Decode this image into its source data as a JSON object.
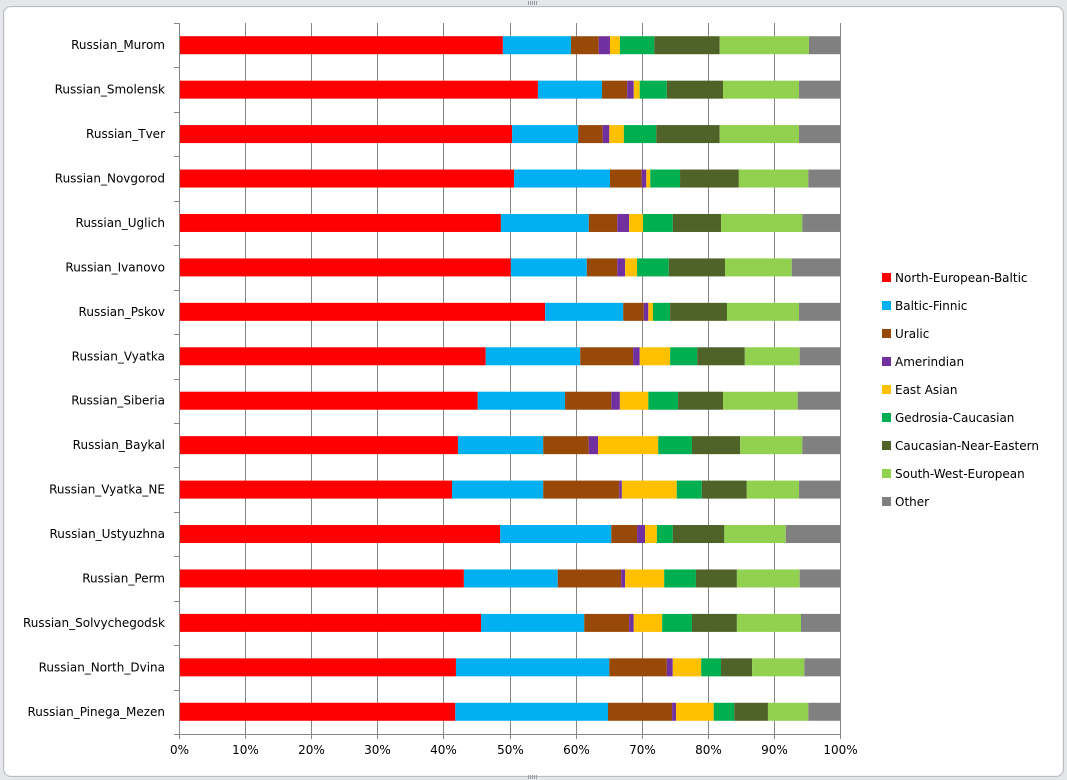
{
  "chart_data": {
    "type": "bar",
    "orientation": "horizontal",
    "stacked": "percent",
    "title": "",
    "xlabel": "",
    "ylabel": "",
    "xlim": [
      0,
      100
    ],
    "x_ticks": [
      "0%",
      "10%",
      "20%",
      "30%",
      "40%",
      "50%",
      "60%",
      "70%",
      "80%",
      "90%",
      "100%"
    ],
    "grid": "vertical",
    "legend_position": "right",
    "categories": [
      "Russian_Murom",
      "Russian_Smolensk",
      "Russian_Tver",
      "Russian_Novgorod",
      "Russian_Uglich",
      "Russian_Ivanovo",
      "Russian_Pskov",
      "Russian_Vyatka",
      "Russian_Siberia",
      "Russian_Baykal",
      "Russian_Vyatka_NE",
      "Russian_Ustyuzhna",
      "Russian_Perm",
      "Russian_Solvychegodsk",
      "Russian_North_Dvina",
      "Russian_Pinega_Mezen"
    ],
    "series": [
      {
        "name": "North-European-Baltic",
        "color": "#ff0000",
        "values": [
          49.0,
          54.3,
          50.4,
          50.7,
          48.7,
          50.2,
          55.4,
          46.4,
          45.2,
          42.2,
          41.3,
          48.6,
          43.1,
          45.7,
          41.9,
          41.8
        ]
      },
      {
        "name": "Baltic-Finnic",
        "color": "#00b0f0",
        "values": [
          10.3,
          9.7,
          10.0,
          14.5,
          13.3,
          11.5,
          11.8,
          14.3,
          13.2,
          12.9,
          13.8,
          16.8,
          14.2,
          15.6,
          23.2,
          23.1
        ]
      },
      {
        "name": "Uralic",
        "color": "#984807",
        "values": [
          4.2,
          3.8,
          3.7,
          4.8,
          4.3,
          4.6,
          3.1,
          8.0,
          7.0,
          6.9,
          11.5,
          3.9,
          9.6,
          6.8,
          8.7,
          9.7
        ]
      },
      {
        "name": "Amerindian",
        "color": "#7030a0",
        "values": [
          1.7,
          1.0,
          1.0,
          0.7,
          1.8,
          1.2,
          0.7,
          1.0,
          1.3,
          1.4,
          0.4,
          1.2,
          0.6,
          0.7,
          0.9,
          0.6
        ]
      },
      {
        "name": "East Asian",
        "color": "#ffc000",
        "values": [
          1.5,
          0.9,
          2.2,
          0.6,
          2.1,
          1.8,
          0.7,
          4.6,
          4.3,
          9.1,
          8.3,
          1.8,
          5.9,
          4.3,
          4.3,
          5.7
        ]
      },
      {
        "name": "Gedrosia-Caucasian",
        "color": "#00b050",
        "values": [
          5.2,
          4.1,
          4.9,
          4.5,
          4.5,
          4.8,
          2.6,
          4.1,
          4.5,
          5.1,
          3.8,
          2.4,
          4.8,
          4.5,
          3.0,
          3.1
        ]
      },
      {
        "name": "Caucasian-Near-Eastern",
        "color": "#4f6228",
        "values": [
          9.9,
          8.5,
          9.6,
          8.9,
          7.3,
          8.5,
          8.6,
          7.2,
          6.8,
          7.3,
          6.8,
          7.8,
          6.2,
          6.8,
          4.7,
          5.1
        ]
      },
      {
        "name": "South-West-European",
        "color": "#92d050",
        "values": [
          13.5,
          11.5,
          12.0,
          10.5,
          12.3,
          10.1,
          10.9,
          8.3,
          11.3,
          9.4,
          7.9,
          9.3,
          9.5,
          9.7,
          7.9,
          6.1
        ]
      },
      {
        "name": "Other",
        "color": "#808080",
        "values": [
          4.7,
          6.2,
          6.2,
          4.8,
          5.7,
          7.3,
          6.2,
          6.1,
          6.4,
          5.7,
          6.2,
          8.2,
          6.1,
          5.9,
          5.4,
          4.8
        ]
      }
    ]
  }
}
